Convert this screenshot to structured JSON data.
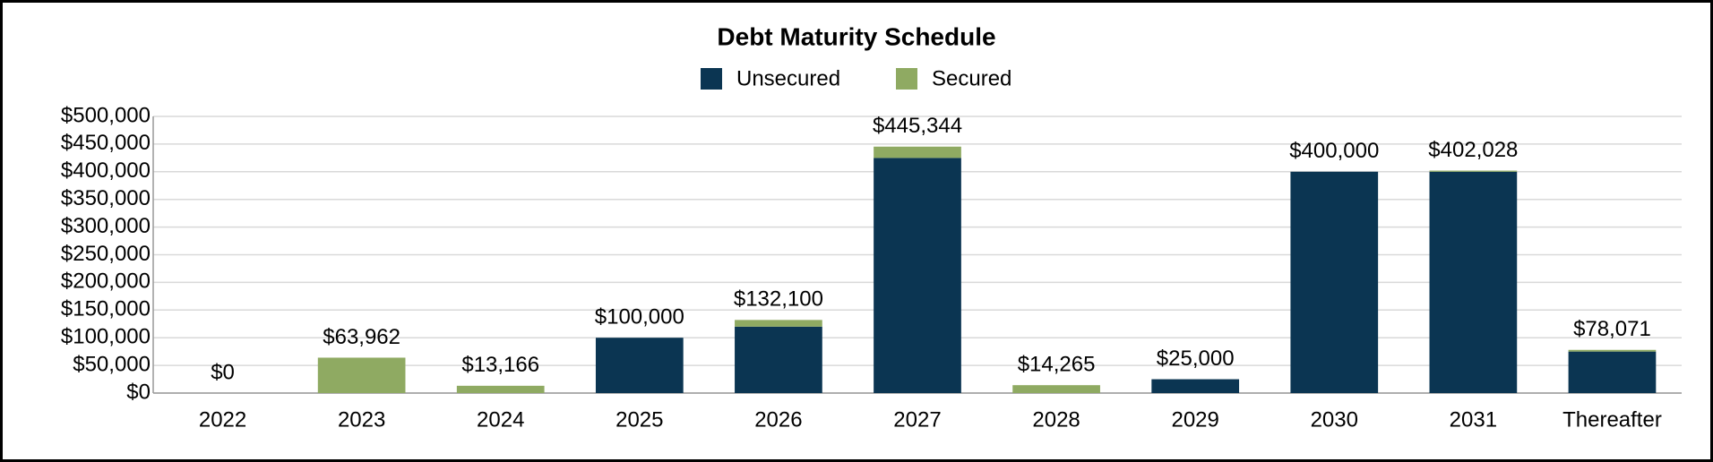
{
  "chart_data": {
    "type": "stacked_bar",
    "title": "Debt Maturity Schedule",
    "categories": [
      "2022",
      "2023",
      "2024",
      "2025",
      "2026",
      "2027",
      "2028",
      "2029",
      "2030",
      "2031",
      "Thereafter"
    ],
    "series": [
      {
        "name": "Unsecured",
        "color": "#0b3552",
        "values": [
          0,
          0,
          0,
          100000,
          120000,
          425000,
          0,
          25000,
          400000,
          400000,
          75000
        ]
      },
      {
        "name": "Secured",
        "color": "#8faa62",
        "values": [
          0,
          63962,
          13166,
          0,
          12100,
          20344,
          14265,
          0,
          0,
          2028,
          3071
        ]
      }
    ],
    "totals": {
      "values": [
        0,
        63962,
        13166,
        100000,
        132100,
        445344,
        14265,
        25000,
        400000,
        402028,
        78071
      ],
      "value_labels": [
        "$0",
        "$63,962",
        "$13,166",
        "$100,000",
        "$132,100",
        "$445,344",
        "$14,265",
        "$25,000",
        "$400,000",
        "$402,028",
        "$78,071"
      ]
    },
    "ylim": [
      0,
      500000
    ],
    "yticks": [
      {
        "value": 0,
        "label": "$0"
      },
      {
        "value": 50000,
        "label": "$50,000"
      },
      {
        "value": 100000,
        "label": "$100,000"
      },
      {
        "value": 150000,
        "label": "$150,000"
      },
      {
        "value": 200000,
        "label": "$200,000"
      },
      {
        "value": 250000,
        "label": "$250,000"
      },
      {
        "value": 300000,
        "label": "$300,000"
      },
      {
        "value": 350000,
        "label": "$350,000"
      },
      {
        "value": 400000,
        "label": "$400,000"
      },
      {
        "value": 450000,
        "label": "$450,000"
      },
      {
        "value": 500000,
        "label": "$500,000"
      }
    ],
    "grid": true,
    "legend": "top"
  }
}
